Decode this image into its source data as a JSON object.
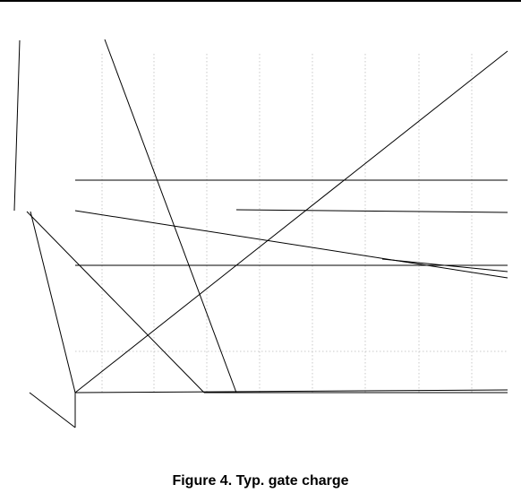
{
  "figure": {
    "caption": "Figure 4. Typ. gate charge"
  }
}
